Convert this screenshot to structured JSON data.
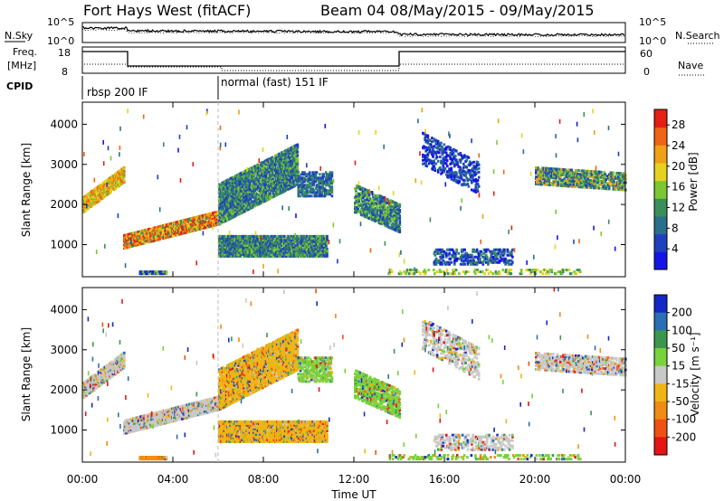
{
  "header": {
    "station": "Fort Hays West (fitACF)",
    "beam_info": "Beam 04 08/May/2015 - 09/May/2015"
  },
  "strip": {
    "nsky_label": "N.Sky",
    "nsearch_label": "N.Search",
    "freq_label": "Freq.",
    "freq_unit": "[MHz]",
    "nave_label": "Nave",
    "cpid_label": "CPID",
    "noise_left_ticks": [
      "10^5",
      "10^0"
    ],
    "noise_right_ticks": [
      "10^5",
      "10^0"
    ],
    "freq_ticks": [
      "18",
      "8"
    ],
    "nave_ticks": [
      "60",
      "0"
    ],
    "cpid_modes": [
      "rbsp 200 IF",
      "normal (fast) 151 IF"
    ]
  },
  "chart_data": [
    {
      "type": "heatmap",
      "name": "power",
      "xlabel": "Time UT",
      "ylabel": "Slant Range [km]",
      "xlim": [
        0,
        24
      ],
      "ylim": [
        200,
        4550
      ],
      "x_ticks": [
        "00:00",
        "04:00",
        "08:00",
        "12:00",
        "16:00",
        "20:00",
        "00:00"
      ],
      "y_ticks": [
        1000,
        2000,
        3000,
        4000
      ],
      "colorbar_label": "Power [dB]",
      "colorbar_ticks": [
        4,
        8,
        12,
        16,
        20,
        24,
        28
      ],
      "colorbar_range": [
        0,
        31
      ],
      "colors": [
        "#1414e6",
        "#1e3fbe",
        "#2a6e8e",
        "#3a8e5a",
        "#7cc832",
        "#e6d21e",
        "#f0a014",
        "#f06414",
        "#e61e14"
      ]
    },
    {
      "type": "heatmap",
      "name": "velocity",
      "xlabel": "Time UT",
      "ylabel": "Slant Range [km]",
      "xlim": [
        0,
        24
      ],
      "ylim": [
        200,
        4550
      ],
      "x_ticks": [
        "00:00",
        "04:00",
        "08:00",
        "12:00",
        "16:00",
        "20:00",
        "00:00"
      ],
      "y_ticks": [
        1000,
        2000,
        3000,
        4000
      ],
      "colorbar_label": "Velocity [m s⁻¹]",
      "colorbar_ticks": [
        200,
        100,
        50,
        15,
        -15,
        -50,
        -100,
        -200
      ],
      "colors": [
        "#1428c8",
        "#2a6eb4",
        "#3c9650",
        "#78d23c",
        "#c8c8c8",
        "#f0b414",
        "#f08c14",
        "#f05014",
        "#e61414"
      ]
    }
  ],
  "x_axis_title": "Time UT"
}
